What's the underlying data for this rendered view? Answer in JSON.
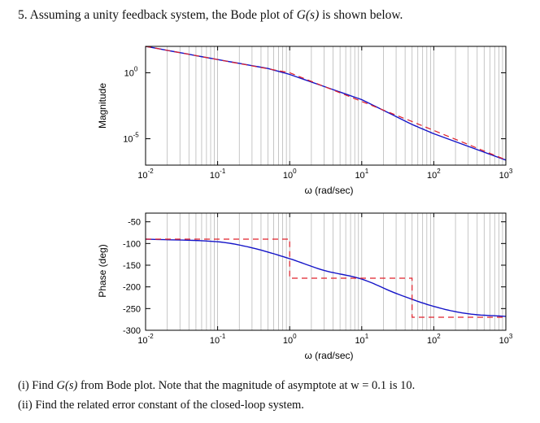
{
  "question": {
    "number": "5.",
    "stem_start": "Assuming a unity feedback system, the Bode plot of ",
    "stem_func": "G(s)",
    "stem_end": " is shown below."
  },
  "footnotes": {
    "i_start": "(i) Find ",
    "i_func": "G(s)",
    "i_end": " from Bode plot. Note that the magnitude of asymptote at w = 0.1 is 10.",
    "ii": "(ii) Find the related error constant of the closed-loop system."
  },
  "colors": {
    "actual": "#1414c8",
    "asymptote": "#e0202a",
    "grid": "#b8b8b8",
    "axes": "#000000"
  },
  "chart_data": [
    {
      "type": "line",
      "panel": "magnitude",
      "ylabel": "Magnitude",
      "xlabel": "ω (rad/sec)",
      "xscale": "log",
      "yscale": "log",
      "xlim": [
        0.01,
        1000
      ],
      "ylim": [
        1e-07,
        100.0
      ],
      "x_ticks": [
        0.01,
        0.1,
        1,
        10,
        100,
        1000
      ],
      "x_tick_labels": [
        {
          "base": "10",
          "exp": "-2"
        },
        {
          "base": "10",
          "exp": "-1"
        },
        {
          "base": "10",
          "exp": "0"
        },
        {
          "base": "10",
          "exp": "1"
        },
        {
          "base": "10",
          "exp": "2"
        },
        {
          "base": "10",
          "exp": "3"
        }
      ],
      "y_ticks": [
        1,
        1e-05
      ],
      "y_tick_labels": [
        {
          "base": "10",
          "exp": "0"
        },
        {
          "base": "10",
          "exp": "-5"
        }
      ],
      "grid": "x-minor-log",
      "series": [
        {
          "style": "solid",
          "color": "#1414c8",
          "x": [
            0.01,
            0.1,
            0.5,
            1,
            10,
            50,
            100,
            1000
          ],
          "y": [
            100,
            10,
            2.1,
            0.75,
            0.0092,
            0.00012,
            2.4e-05,
            2.4e-07
          ]
        },
        {
          "style": "dashed",
          "color": "#e0202a",
          "x": [
            0.01,
            1,
            50,
            1000
          ],
          "y": [
            100,
            1,
            0.0002,
            2.5e-07
          ]
        }
      ]
    },
    {
      "type": "line",
      "panel": "phase",
      "ylabel": "Phase (deg)",
      "xlabel": "ω (rad/sec)",
      "xscale": "log",
      "xlim": [
        0.01,
        1000
      ],
      "ylim": [
        -300,
        -30
      ],
      "x_ticks": [
        0.01,
        0.1,
        1,
        10,
        100,
        1000
      ],
      "x_tick_labels": [
        {
          "base": "10",
          "exp": "-2"
        },
        {
          "base": "10",
          "exp": "-1"
        },
        {
          "base": "10",
          "exp": "0"
        },
        {
          "base": "10",
          "exp": "1"
        },
        {
          "base": "10",
          "exp": "2"
        },
        {
          "base": "10",
          "exp": "3"
        }
      ],
      "y_ticks": [
        -50,
        -100,
        -150,
        -200,
        -250,
        -300
      ],
      "y_tick_labels": [
        "-50",
        "-100",
        "-150",
        "-200",
        "-250",
        "-300"
      ],
      "grid": "x-minor-log",
      "series": [
        {
          "style": "solid",
          "color": "#1414c8",
          "x": [
            0.01,
            0.1,
            0.3,
            1,
            3,
            10,
            30,
            100,
            300,
            1000
          ],
          "y": [
            -90,
            -96,
            -110,
            -135,
            -162,
            -182,
            -215,
            -245,
            -262,
            -268
          ]
        },
        {
          "style": "dashed",
          "color": "#e0202a",
          "x": [
            0.01,
            1,
            1,
            50,
            50,
            1000
          ],
          "y": [
            -90,
            -90,
            -180,
            -180,
            -270,
            -270
          ]
        }
      ]
    }
  ]
}
